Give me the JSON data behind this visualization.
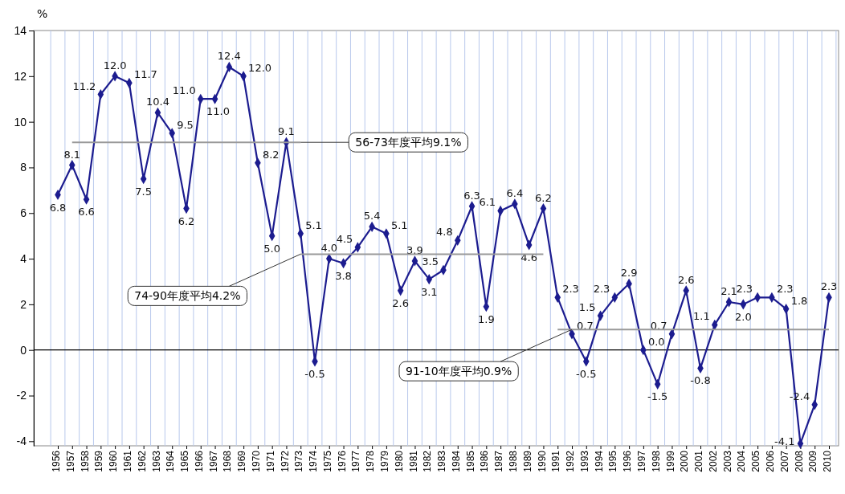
{
  "chart_data": {
    "type": "line",
    "ylabel": "%",
    "categories": [
      "1956",
      "1957",
      "1958",
      "1959",
      "1960",
      "1961",
      "1962",
      "1963",
      "1964",
      "1965",
      "1966",
      "1967",
      "1968",
      "1969",
      "1970",
      "1971",
      "1972",
      "1973",
      "1974",
      "1975",
      "1976",
      "1977",
      "1978",
      "1979",
      "1980",
      "1981",
      "1982",
      "1983",
      "1984",
      "1985",
      "1986",
      "1987",
      "1988",
      "1989",
      "1990",
      "1991",
      "1992",
      "1993",
      "1994",
      "1995",
      "1996",
      "1997",
      "1998",
      "1999",
      "2000",
      "2001",
      "2002",
      "2003",
      "2004",
      "2005",
      "2006",
      "2007",
      "2008",
      "2009",
      "2010"
    ],
    "series": [
      {
        "color": "#1c1c8f",
        "marker": "diamond",
        "values": [
          6.8,
          8.1,
          6.6,
          11.2,
          12.0,
          11.7,
          7.5,
          10.4,
          9.5,
          6.2,
          11.0,
          11.0,
          12.4,
          12.0,
          8.2,
          5.0,
          9.1,
          5.1,
          -0.5,
          4.0,
          3.8,
          4.5,
          5.4,
          5.1,
          2.6,
          3.9,
          3.1,
          3.5,
          4.8,
          6.3,
          1.9,
          6.1,
          6.4,
          4.6,
          6.2,
          2.3,
          0.7,
          -0.5,
          1.5,
          2.3,
          2.9,
          0.0,
          -1.5,
          0.7,
          2.6,
          -0.8,
          1.1,
          2.1,
          2.0,
          2.3,
          2.3,
          1.8,
          -4.1,
          -2.4,
          2.3
        ],
        "value_labels": [
          "6.8",
          "8.1",
          "6.6",
          "11.2",
          "12.0",
          "11.7",
          "7.5",
          "10.4",
          "9.5",
          "6.2",
          "11.0",
          "11.0",
          "12.4",
          "12.0",
          "8.2",
          "5.0",
          "9.1",
          "5.1",
          "-0.5",
          "4.0",
          "3.8",
          "4.5",
          "5.4",
          "5.1",
          "2.6",
          "3.9",
          "3.1",
          "3.5",
          "4.8",
          "6.3",
          "1.9",
          "6.1",
          "6.4",
          "4.6",
          "6.2",
          "2.3",
          "0.7",
          "-0.5",
          "1.5",
          "2.3",
          "2.9",
          "0.0",
          "-1.5",
          "0.7",
          "2.6",
          "-0.8",
          "1.1",
          "2.1",
          "2.0",
          "2.3",
          "2.3",
          "1.8",
          "-4.1",
          "-2.4",
          "2.3"
        ]
      },
      {
        "color": "#999999",
        "marker": "none",
        "values": [
          null,
          9.1,
          9.1,
          9.1,
          9.1,
          9.1,
          9.1,
          9.1,
          9.1,
          9.1,
          9.1,
          9.1,
          9.1,
          9.1,
          9.1,
          9.1,
          9.1,
          9.1,
          null,
          null,
          null,
          null,
          null,
          null,
          null,
          null,
          null,
          null,
          null,
          null,
          null,
          null,
          null,
          null,
          null,
          null,
          null,
          null,
          null,
          null,
          null,
          null,
          null,
          null,
          null,
          null,
          null,
          null,
          null,
          null,
          null,
          null,
          null,
          null,
          null
        ]
      },
      {
        "color": "#999999",
        "marker": "none",
        "values": [
          null,
          null,
          null,
          null,
          null,
          null,
          null,
          null,
          null,
          null,
          null,
          null,
          null,
          null,
          null,
          null,
          null,
          4.2,
          4.2,
          4.2,
          4.2,
          4.2,
          4.2,
          4.2,
          4.2,
          4.2,
          4.2,
          4.2,
          4.2,
          4.2,
          4.2,
          4.2,
          4.2,
          4.2,
          4.2,
          null,
          null,
          null,
          null,
          null,
          null,
          null,
          null,
          null,
          null,
          null,
          null,
          null,
          null,
          null,
          null,
          null,
          null,
          null,
          null
        ]
      },
      {
        "color": "#999999",
        "marker": "none",
        "values": [
          null,
          null,
          null,
          null,
          null,
          null,
          null,
          null,
          null,
          null,
          null,
          null,
          null,
          null,
          null,
          null,
          null,
          null,
          null,
          null,
          null,
          null,
          null,
          null,
          null,
          null,
          null,
          null,
          null,
          null,
          null,
          null,
          null,
          null,
          null,
          0.9,
          0.9,
          0.9,
          0.9,
          0.9,
          0.9,
          0.9,
          0.9,
          0.9,
          0.9,
          0.9,
          0.9,
          0.9,
          0.9,
          0.9,
          0.9,
          0.9,
          0.9,
          0.9,
          0.9
        ]
      }
    ],
    "ref_lines": [
      {
        "axis": "y",
        "value": 0,
        "color": "#000000"
      }
    ],
    "annotations": [
      {
        "text": "56-73年度平均9.1%",
        "x": "1973",
        "y": 9.1
      },
      {
        "text": "74-90年度平均4.2%",
        "x": "1973",
        "y": 4.2
      },
      {
        "text": "91-10年度平均0.9%",
        "x": "1992",
        "y": 0.9
      }
    ],
    "ylim": [
      -4.2,
      14
    ],
    "yticks": [
      -4,
      -2,
      0,
      2,
      4,
      6,
      8,
      10,
      12,
      14
    ],
    "grid": "x"
  }
}
